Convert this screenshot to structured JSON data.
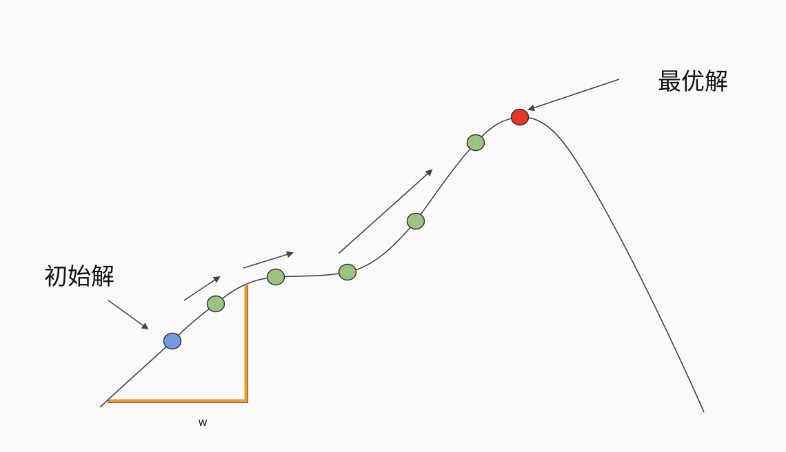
{
  "labels": {
    "initial_solution": "初始解",
    "optimal_solution": "最优解",
    "width": "w"
  },
  "colors": {
    "background": "#f9f9f9",
    "curve": "#444444",
    "arrow": "#444444",
    "initial_point": "#7399e0",
    "intermediate_point": "#9dc383",
    "optimal_point": "#e8352a",
    "point_outline": "#333333",
    "step_bracket": "#f0992c"
  },
  "points": [
    {
      "role": "initial",
      "color_key": "initial_point"
    },
    {
      "role": "intermediate",
      "color_key": "intermediate_point"
    },
    {
      "role": "intermediate",
      "color_key": "intermediate_point"
    },
    {
      "role": "intermediate",
      "color_key": "intermediate_point"
    },
    {
      "role": "intermediate",
      "color_key": "intermediate_point"
    },
    {
      "role": "intermediate",
      "color_key": "intermediate_point"
    },
    {
      "role": "optimal",
      "color_key": "optimal_point"
    }
  ]
}
